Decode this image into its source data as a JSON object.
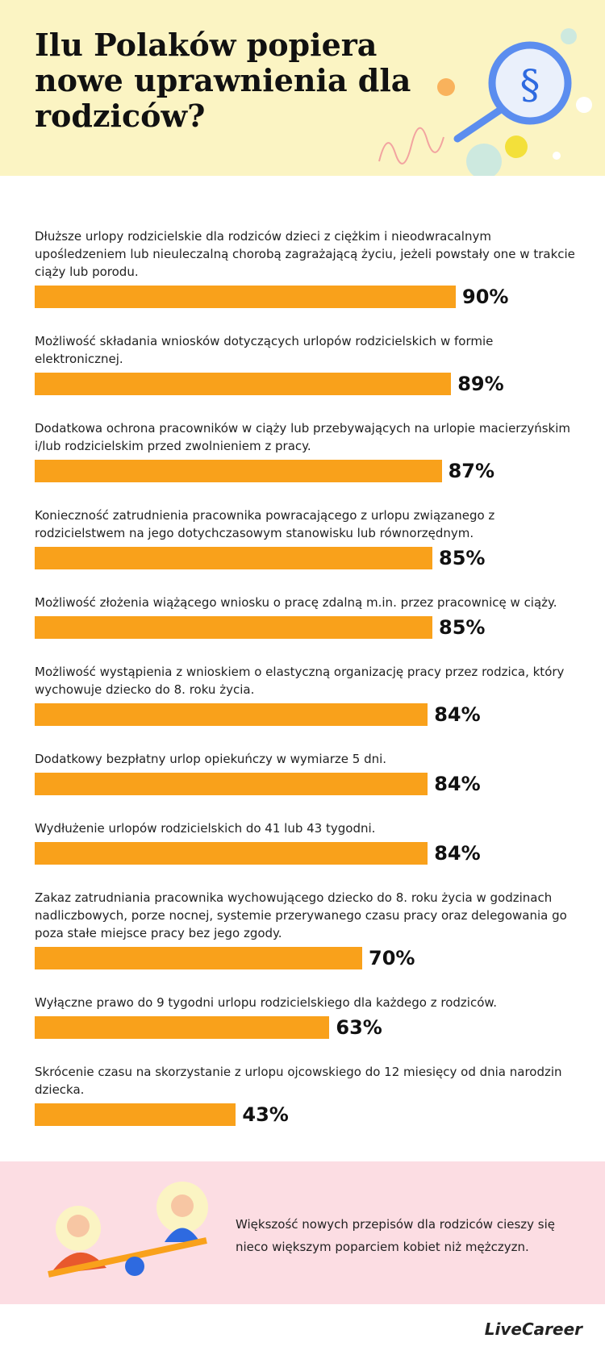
{
  "chart_data": {
    "type": "bar",
    "orientation": "horizontal",
    "title": "Ilu Polaków popiera nowe uprawnienia dla rodziców?",
    "color": "#f9a11b",
    "categories": [
      "Dłuższe urlopy rodzicielskie dla rodziców dzieci z ciężkim i nieodwracalnym upośledzeniem lub nieuleczalną chorobą zagrażającą życiu, jeżeli powstały one w trakcie ciąży lub porodu.",
      "Możliwość składania wniosków dotyczących urlopów rodzicielskich w formie elektronicznej.",
      "Dodatkowa ochrona pracowników w ciąży lub przebywających na urlopie macierzyńskim i/lub rodzicielskim przed zwolnieniem z pracy.",
      "Konieczność zatrudnienia pracownika powracającego z urlopu związanego z rodzicielstwem na jego dotychczasowym stanowisku lub równorzędnym.",
      "Możliwość złożenia wiążącego wniosku o pracę zdalną m.in. przez pracownicę w ciąży.",
      "Możliwość wystąpienia z wnioskiem o elastyczną organizację pracy przez rodzica, który wychowuje dziecko do 8. roku życia.",
      "Dodatkowy bezpłatny urlop opiekuńczy w wymiarze 5 dni.",
      "Wydłużenie urlopów rodzicielskich do 41 lub 43 tygodni.",
      "Zakaz zatrudniania pracownika wychowującego dziecko do 8. roku życia w godzinach nadliczbowych, porze nocnej, systemie przerywanego czasu pracy oraz delegowania go poza stałe miejsce pracy bez jego zgody.",
      "Wyłączne prawo do 9 tygodni urlopu rodzicielskiego dla każdego z rodziców.",
      "Skrócenie czasu na skorzystanie z urlopu ojcowskiego do 12 miesięcy od dnia narodzin dziecka."
    ],
    "values": [
      90,
      89,
      87,
      85,
      85,
      84,
      84,
      84,
      70,
      63,
      43
    ],
    "value_labels": [
      "90%",
      "89%",
      "87%",
      "85%",
      "85%",
      "84%",
      "84%",
      "84%",
      "70%",
      "63%",
      "43%"
    ]
  },
  "note": "Większość nowych przepisów dla rodziców cieszy się nieco większym poparciem kobiet niż mężczyzn.",
  "logo": "LiveCareer"
}
